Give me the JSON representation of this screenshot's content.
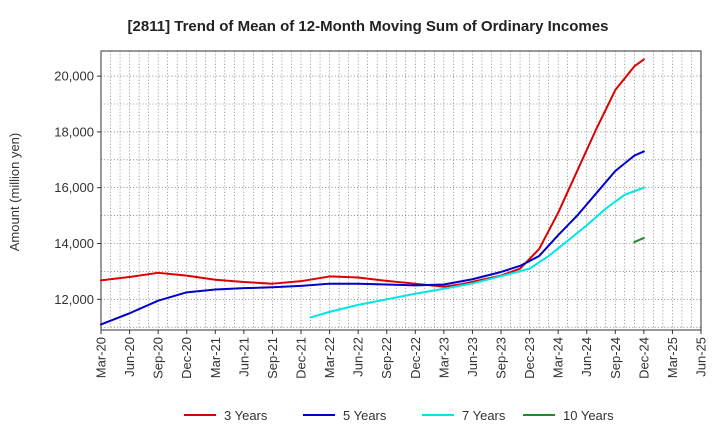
{
  "chart_data": {
    "type": "line",
    "title": "[2811]  Trend of Mean of 12-Month Moving Sum of Ordinary Incomes",
    "xlabel": "",
    "ylabel": "Amount (million yen)",
    "ylim": [
      10900,
      20900
    ],
    "y_ticks": [
      12000,
      14000,
      16000,
      18000,
      20000
    ],
    "y_tick_labels": [
      "12,000",
      "14,000",
      "16,000",
      "18,000",
      "20,000"
    ],
    "x_tick_labels": [
      "Mar-20",
      "Jun-20",
      "Sep-20",
      "Dec-20",
      "Mar-21",
      "Jun-21",
      "Sep-21",
      "Dec-21",
      "Mar-22",
      "Jun-22",
      "Sep-22",
      "Dec-22",
      "Mar-23",
      "Jun-23",
      "Sep-23",
      "Dec-23",
      "Mar-24",
      "Jun-24",
      "Sep-24",
      "Dec-24",
      "Mar-25",
      "Jun-25"
    ],
    "x_index_note": "x = months since Mar-20",
    "grid": true,
    "legend_position": "bottom",
    "series": [
      {
        "name": "3 Years",
        "color": "#dd0000",
        "x": [
          0,
          3,
          6,
          9,
          12,
          15,
          18,
          21,
          24,
          27,
          30,
          33,
          36,
          38,
          40,
          42,
          44,
          46,
          48,
          50,
          52,
          54,
          56,
          57
        ],
        "values": [
          12680,
          12800,
          12950,
          12850,
          12700,
          12620,
          12560,
          12650,
          12820,
          12780,
          12660,
          12560,
          12450,
          12550,
          12700,
          12850,
          13100,
          13800,
          15100,
          16600,
          18100,
          19500,
          20350,
          20600
        ]
      },
      {
        "name": "5 Years",
        "color": "#0000cc",
        "x": [
          0,
          3,
          6,
          9,
          12,
          15,
          18,
          21,
          24,
          27,
          30,
          33,
          36,
          39,
          42,
          44,
          46,
          48,
          50,
          52,
          54,
          56,
          57
        ],
        "values": [
          11100,
          11500,
          11950,
          12250,
          12350,
          12400,
          12430,
          12480,
          12560,
          12560,
          12530,
          12500,
          12530,
          12720,
          12980,
          13200,
          13550,
          14300,
          15000,
          15800,
          16600,
          17150,
          17300
        ]
      },
      {
        "name": "7 Years",
        "color": "#00e5e5",
        "x": [
          22,
          24,
          27,
          30,
          33,
          36,
          39,
          42,
          45,
          47,
          49,
          51,
          53,
          55,
          57
        ],
        "values": [
          11350,
          11550,
          11800,
          12000,
          12200,
          12380,
          12570,
          12830,
          13100,
          13550,
          14100,
          14650,
          15250,
          15750,
          16000
        ]
      },
      {
        "name": "10 Years",
        "color": "#228b22",
        "x": [
          56,
          57
        ],
        "values": [
          14050,
          14200
        ]
      }
    ]
  }
}
